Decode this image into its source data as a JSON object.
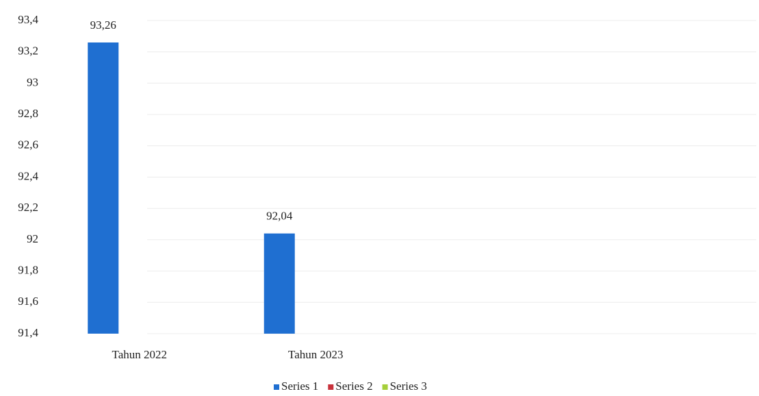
{
  "chart_data": {
    "type": "bar",
    "categories": [
      "Tahun 2022",
      "Tahun 2023",
      null,
      null
    ],
    "series": [
      {
        "name": "Series 1",
        "color": "#1f6fd1",
        "values": [
          93.26,
          92.04,
          null,
          null
        ],
        "value_labels": [
          "93,26",
          "92,04",
          null,
          null
        ]
      },
      {
        "name": "Series 2",
        "color": "#c8323c",
        "values": [
          null,
          null,
          null,
          null
        ]
      },
      {
        "name": "Series 3",
        "color": "#a5cf3a",
        "values": [
          null,
          null,
          null,
          null
        ]
      }
    ],
    "ylim": [
      91.4,
      93.4
    ],
    "yticks": [
      {
        "value": 91.4,
        "label": "91,4"
      },
      {
        "value": 91.6,
        "label": "91,6"
      },
      {
        "value": 91.8,
        "label": "91,8"
      },
      92,
      {
        "value": 92.2,
        "label": "92,2"
      },
      {
        "value": 92.4,
        "label": "92,4"
      },
      {
        "value": 92.6,
        "label": "92,6"
      },
      {
        "value": 92.8,
        "label": "92,8"
      },
      93,
      {
        "value": 93.2,
        "label": "93,2"
      },
      {
        "value": 93.4,
        "label": "93,4"
      }
    ],
    "grid": true,
    "legend": "bottom"
  }
}
